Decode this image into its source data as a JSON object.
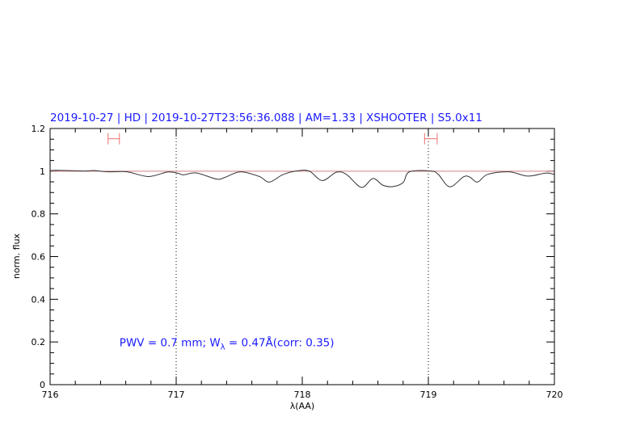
{
  "chart_data": {
    "type": "line",
    "title": "2019-10-27 | HD | 2019-10-27T23:56:36.088 | AM=1.33 | XSHOOTER | S5.0x11",
    "xlabel": "λ(AA)",
    "ylabel": "norm. flux",
    "xlim": [
      716,
      720
    ],
    "ylim": [
      0,
      1.2
    ],
    "xticks": [
      716,
      717,
      718,
      719,
      720
    ],
    "xtick_labels": [
      "716",
      "717",
      "718",
      "719",
      "720"
    ],
    "yticks": [
      0,
      0.2,
      0.4,
      0.6,
      0.8,
      1,
      1.2
    ],
    "ytick_labels": [
      "0",
      "0.2",
      "0.4",
      "0.6",
      "0.8",
      "1",
      "1.2"
    ],
    "x_minor_step": 0.2,
    "y_minor_step": 0.05,
    "grid": false,
    "reference_line": {
      "y": 1,
      "color": "#d08080"
    },
    "vertical_dotted_lines": [
      717,
      719
    ],
    "annotation": {
      "text_prefix": "PWV = 0.7 mm; W",
      "subscript": "λ",
      "text_suffix": " = 0.47Å(corr: 0.35)",
      "x": 716.55,
      "y": 0.18,
      "color": "#1a1aff"
    },
    "range_markers": [
      {
        "x_start": 716.46,
        "x_end": 716.55,
        "y": 1.152,
        "color": "#f07070"
      },
      {
        "x_start": 718.97,
        "x_end": 719.07,
        "y": 1.152,
        "color": "#f07070"
      }
    ],
    "series": [
      {
        "color": "#333333",
        "x": [
          716.0,
          716.055,
          716.27,
          716.35,
          716.455,
          716.61,
          716.78,
          716.93,
          717.01,
          717.06,
          717.16,
          717.32,
          717.39,
          717.51,
          717.66,
          717.74,
          717.85,
          717.98,
          718.06,
          718.16,
          718.27,
          718.35,
          718.47,
          718.56,
          718.64,
          718.72,
          718.8,
          718.85,
          719.02,
          719.08,
          719.17,
          719.28,
          719.33,
          719.39,
          719.47,
          719.64,
          719.79,
          719.93,
          720.0
        ],
        "y": [
          1.002,
          1.004,
          1.001,
          1.003,
          0.997,
          0.997,
          0.975,
          0.996,
          0.991,
          0.983,
          0.992,
          0.963,
          0.972,
          0.997,
          0.975,
          0.949,
          0.985,
          1.003,
          0.999,
          0.956,
          0.995,
          0.985,
          0.924,
          0.966,
          0.934,
          0.928,
          0.947,
          0.997,
          1.001,
          0.984,
          0.927,
          0.974,
          0.972,
          0.949,
          0.985,
          0.997,
          0.977,
          0.991,
          0.985
        ]
      }
    ]
  }
}
